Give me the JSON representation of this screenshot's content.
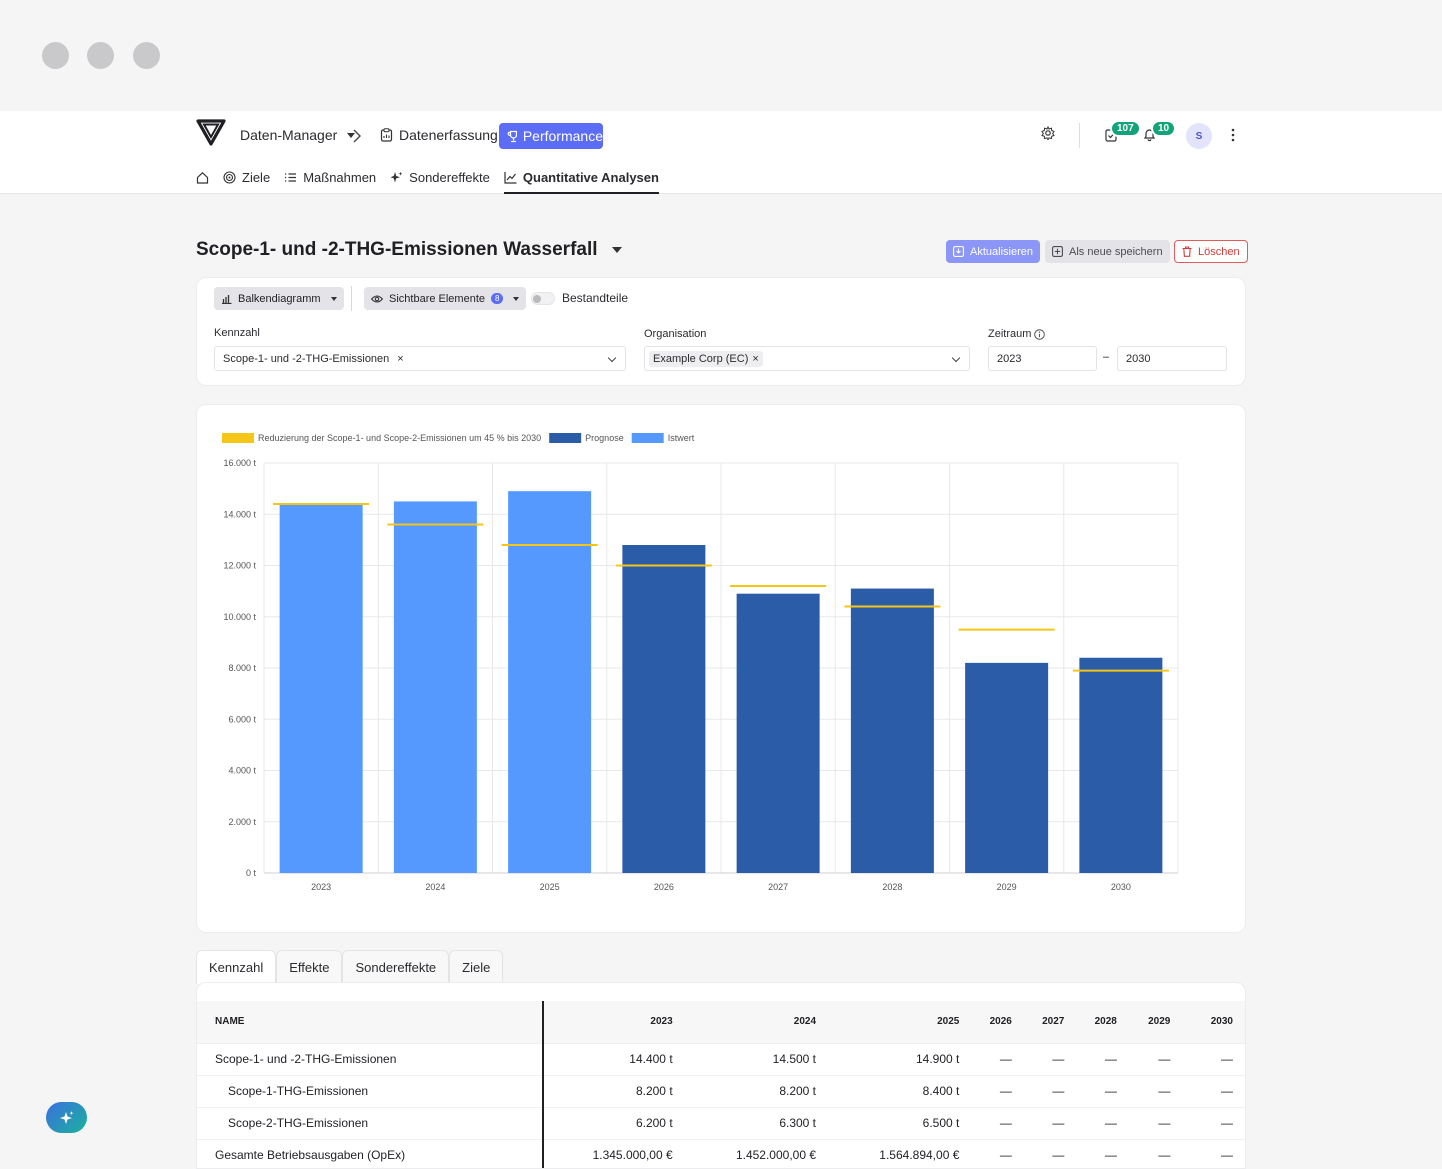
{
  "header": {
    "breadcrumb_manager": "Daten-Manager",
    "breadcrumb_capture": "Datenerfassung",
    "active_module": "Performance",
    "tasks_badge": "107",
    "notifications_badge": "10",
    "avatar_initial": "S"
  },
  "subnav": {
    "items": [
      "Ziele",
      "Maßnahmen",
      "Sondereffekte",
      "Quantitative Analysen"
    ]
  },
  "page": {
    "title": "Scope-1- und -2-THG-Emissionen Wasserfall",
    "actions": {
      "update": "Aktualisieren",
      "save_new": "Als neue speichern",
      "delete": "Löschen"
    }
  },
  "filters": {
    "chart_type": "Balkendiagramm",
    "visible_elements": "Sichtbare Elemente",
    "visible_count": "8",
    "components_label": "Bestandteile",
    "kpi_label": "Kennzahl",
    "kpi_value": "Scope-1- und -2-THG-Emissionen",
    "org_label": "Organisation",
    "org_value": "Example Corp (EC)",
    "period_label": "Zeitraum",
    "period_from": "2023",
    "period_to": "2030",
    "period_sep": "–",
    "remove": "×"
  },
  "chart_data": {
    "type": "bar",
    "categories": [
      "2023",
      "2024",
      "2025",
      "2026",
      "2027",
      "2028",
      "2029",
      "2030"
    ],
    "series": [
      {
        "name": "Istwert",
        "color": "#5599ff",
        "values": [
          14400,
          14500,
          14900,
          null,
          null,
          null,
          null,
          null
        ]
      },
      {
        "name": "Prognose",
        "color": "#2b5ca8",
        "values": [
          null,
          null,
          null,
          12800,
          10900,
          11100,
          8200,
          8400
        ]
      },
      {
        "name": "Reduzierung der Scope-1- und Scope-2-Emissionen um 45 % bis 2030",
        "color": "#f5c518",
        "type": "target-line",
        "values": [
          14400,
          13600,
          12800,
          12000,
          11200,
          10400,
          9500,
          7900
        ]
      }
    ],
    "ylim": [
      0,
      16000
    ],
    "yticks": [
      "0 t",
      "2.000 t",
      "4.000 t",
      "6.000 t",
      "8.000 t",
      "10.000 t",
      "12.000 t",
      "14.000 t",
      "16.000 t"
    ],
    "grid": true,
    "legend": "top-left"
  },
  "tabs": [
    "Kennzahl",
    "Effekte",
    "Sondereffekte",
    "Ziele"
  ],
  "table": {
    "headers": [
      "NAME",
      "2023",
      "2024",
      "2025",
      "2026",
      "2027",
      "2028",
      "2029",
      "2030"
    ],
    "rows": [
      {
        "name": "Scope-1- und -2-THG-Emissionen",
        "cells": [
          "14.400 t",
          "14.500 t",
          "14.900 t",
          "—",
          "—",
          "—",
          "—",
          "—"
        ]
      },
      {
        "name": "Scope-1-THG-Emissionen",
        "cells": [
          "8.200 t",
          "8.200 t",
          "8.400 t",
          "—",
          "—",
          "—",
          "—",
          "—"
        ]
      },
      {
        "name": "Scope-2-THG-Emissionen",
        "cells": [
          "6.200 t",
          "6.300 t",
          "6.500 t",
          "—",
          "—",
          "—",
          "—",
          "—"
        ]
      },
      {
        "name": "Gesamte Betriebsausgaben (OpEx)",
        "cells": [
          "1.345.000,00 €",
          "1.452.000,00 €",
          "1.564.894,00 €",
          "—",
          "—",
          "—",
          "—",
          "—"
        ]
      }
    ]
  }
}
